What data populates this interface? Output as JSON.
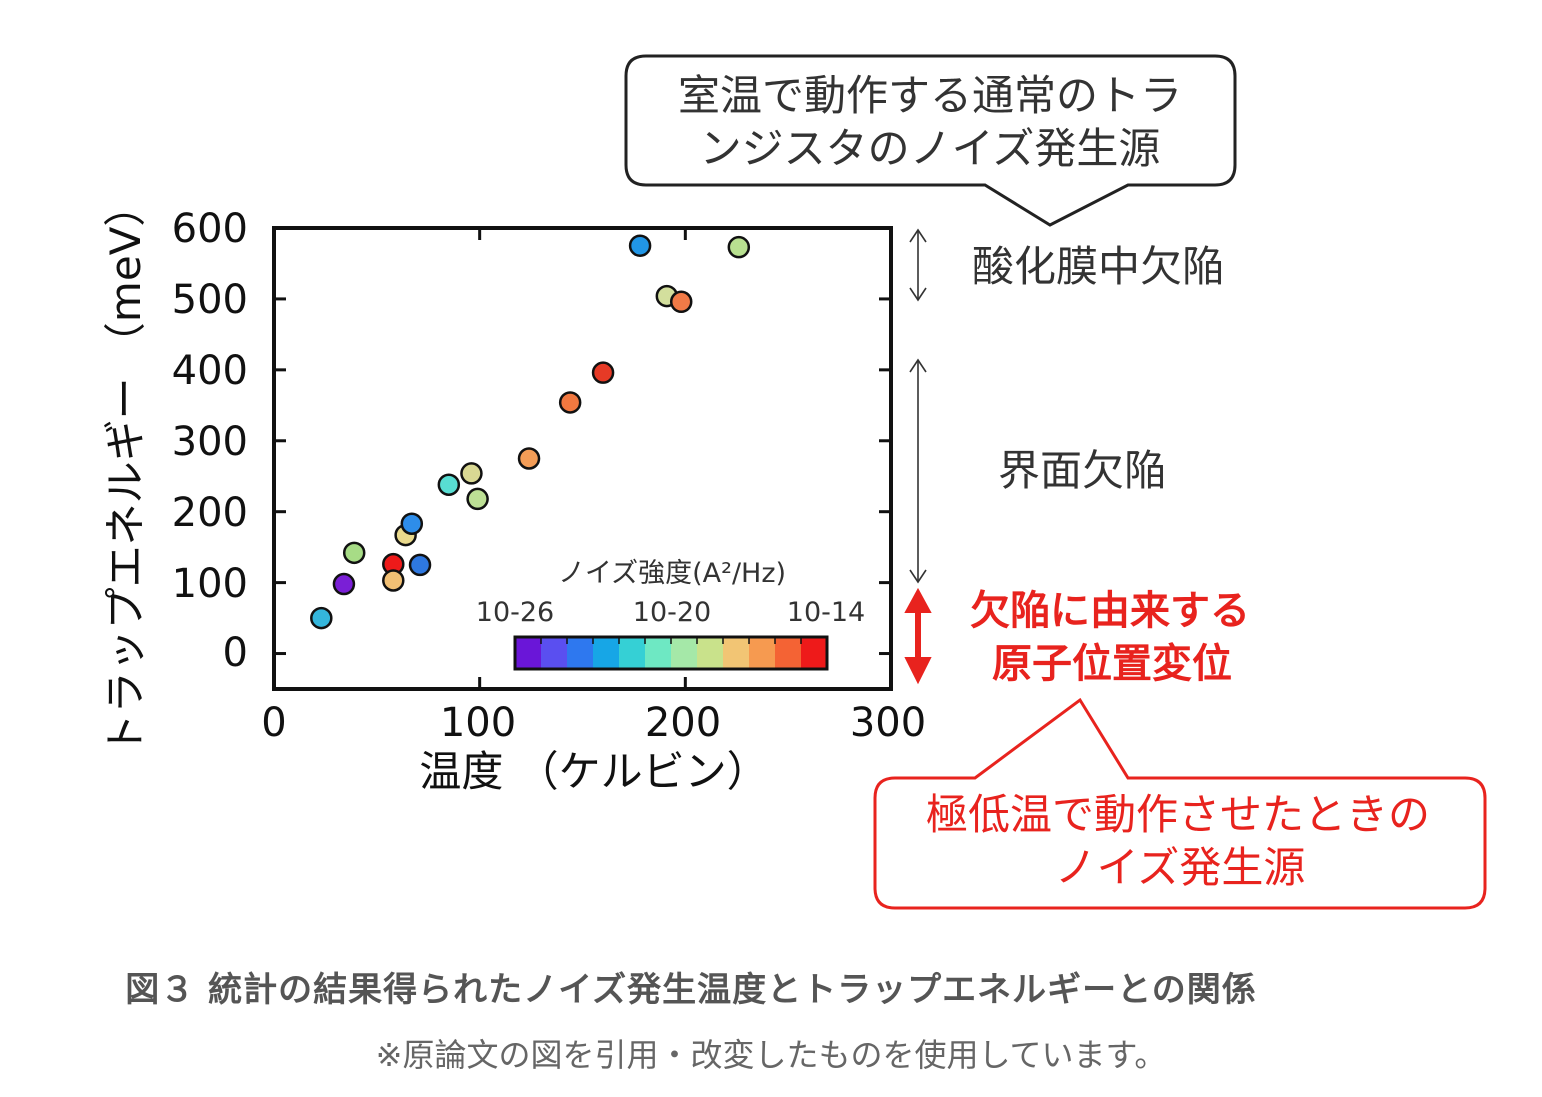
{
  "chart_data": {
    "type": "scatter",
    "xlabel": "温度 （ケルビン）",
    "ylabel": "トラップエネルギー （meV）",
    "xlim": [
      0,
      300
    ],
    "ylim": [
      -50,
      600
    ],
    "x_ticks": [
      "0",
      "100",
      "200",
      "300"
    ],
    "y_ticks": [
      "0",
      "100",
      "200",
      "300",
      "400",
      "500",
      "600"
    ],
    "points": [
      {
        "x": 23,
        "y": 50,
        "color": "#34b6dc"
      },
      {
        "x": 34,
        "y": 98,
        "color": "#7a1fd6"
      },
      {
        "x": 39,
        "y": 142,
        "color": "#a7dc86"
      },
      {
        "x": 58,
        "y": 126,
        "color": "#ee1a1a"
      },
      {
        "x": 58,
        "y": 103,
        "color": "#f2c074"
      },
      {
        "x": 64,
        "y": 167,
        "color": "#e9d98c"
      },
      {
        "x": 67,
        "y": 183,
        "color": "#2e8de9"
      },
      {
        "x": 71,
        "y": 125,
        "color": "#2e78e0"
      },
      {
        "x": 85,
        "y": 238,
        "color": "#58ded3"
      },
      {
        "x": 96,
        "y": 254,
        "color": "#d9d893"
      },
      {
        "x": 99,
        "y": 218,
        "color": "#bde095"
      },
      {
        "x": 124,
        "y": 275,
        "color": "#f49d57"
      },
      {
        "x": 144,
        "y": 354,
        "color": "#f17840"
      },
      {
        "x": 160,
        "y": 396,
        "color": "#e63a26"
      },
      {
        "x": 178,
        "y": 575,
        "color": "#2196e6"
      },
      {
        "x": 191,
        "y": 504,
        "color": "#d3df9d"
      },
      {
        "x": 198,
        "y": 496,
        "color": "#f17a47"
      },
      {
        "x": 226,
        "y": 573,
        "color": "#b8e090"
      }
    ],
    "colorbar": {
      "title": "ノイズ強度(A²/Hz)",
      "labels": [
        "10-26",
        "10-20",
        "10-14"
      ],
      "colors": [
        "#6a16d8",
        "#5a4ff0",
        "#2e78ef",
        "#17a6e6",
        "#35d0d5",
        "#6ee8c3",
        "#a5e8a8",
        "#c9e28b",
        "#f2c574",
        "#f69a50",
        "#f46334",
        "#ee1a1a"
      ]
    }
  },
  "annotations": {
    "top_callout": [
      "室温で動作する通常のトラ",
      "ンジスタのノイズ発生源"
    ],
    "oxide_defect": "酸化膜中欠陥",
    "interface_defect": "界面欠陥",
    "red_label": [
      "欠陥に由来する",
      "原子位置変位"
    ],
    "bottom_callout": [
      "極低温で動作させたときの",
      "ノイズ発生源"
    ]
  },
  "caption": {
    "title": "図３ 統計の結果得られたノイズ発生温度とトラップエネルギーとの関係",
    "note": "※原論文の図を引用・改変したものを使用しています。"
  },
  "colors": {
    "red": "#e8231e",
    "axis": "#111111",
    "caption_title": "#555555",
    "caption_note": "#666666"
  }
}
